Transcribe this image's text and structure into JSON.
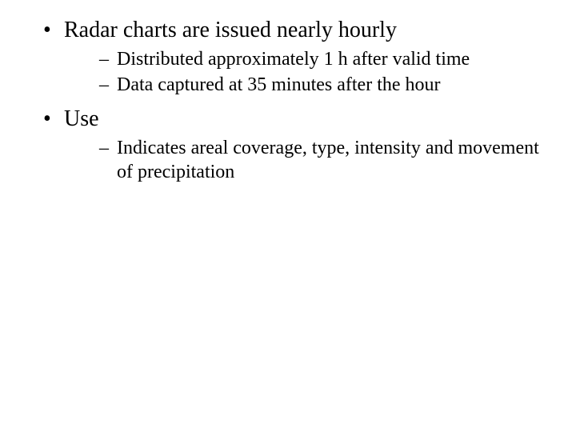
{
  "colors": {
    "background": "#ffffff",
    "text": "#000000"
  },
  "typography": {
    "font_family": "Times New Roman",
    "level1_fontsize_pt": 21,
    "level2_fontsize_pt": 18
  },
  "bullets": {
    "level1_marker": "•",
    "level2_marker": "–"
  },
  "outline": [
    {
      "text": "Radar charts are issued nearly hourly",
      "sub": [
        "Distributed approximately 1 h after valid time",
        "Data captured at 35 minutes after the hour"
      ]
    },
    {
      "text": "Use",
      "sub": [
        "Indicates areal coverage, type, intensity and movement of precipitation"
      ]
    }
  ]
}
